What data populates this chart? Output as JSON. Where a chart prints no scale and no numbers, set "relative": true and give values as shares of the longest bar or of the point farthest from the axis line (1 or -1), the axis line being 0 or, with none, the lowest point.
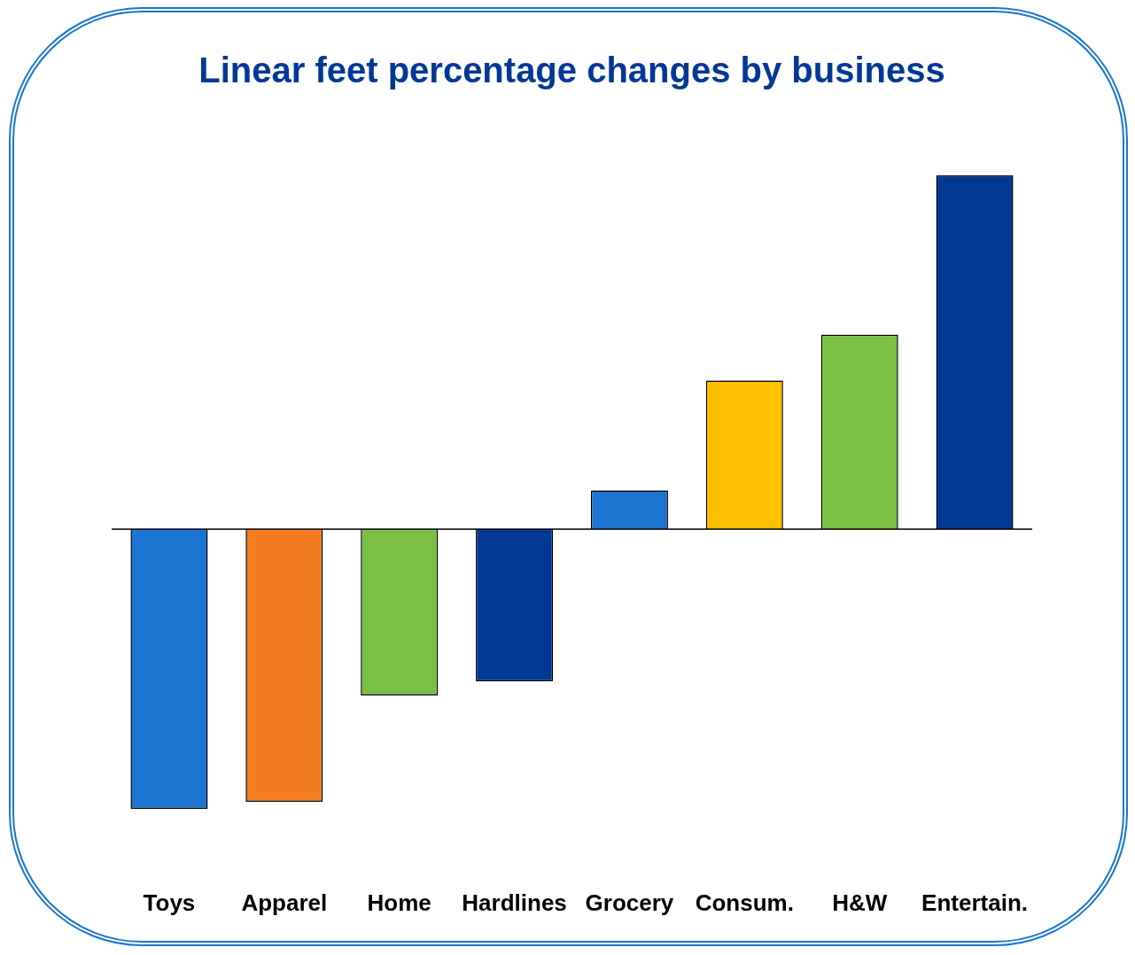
{
  "chart_data": {
    "type": "bar",
    "title": "Linear feet percentage changes by business",
    "relative": true,
    "categories": [
      "Toys",
      "Apparel",
      "Home",
      "Hardlines",
      "Grocery",
      "Consum.",
      "H&W",
      "Entertain."
    ],
    "values": [
      -0.79,
      -0.77,
      -0.47,
      -0.43,
      0.11,
      0.42,
      0.55,
      1
    ],
    "colors": [
      "#1b75d0",
      "#f47c20",
      "#7ac143",
      "#003896",
      "#1b75d0",
      "#ffc000",
      "#7ac143",
      "#003896"
    ],
    "legend": false,
    "grid": false
  }
}
